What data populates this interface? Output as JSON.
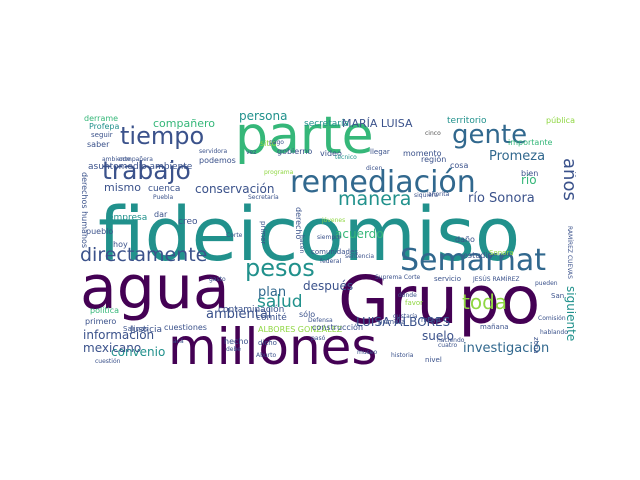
{
  "palette": {
    "dark": "#440154",
    "indigo": "#3b528b",
    "blue": "#31688e",
    "teal": "#21918c",
    "green": "#35b779",
    "lime": "#90d743",
    "yellow": "#d8e219",
    "grey": "#555555"
  },
  "words": [
    {
      "text": "fideicomiso",
      "size": 74,
      "color": "teal"
    },
    {
      "text": "Grupo",
      "size": 66,
      "color": "dark"
    },
    {
      "text": "agua",
      "size": 60,
      "color": "dark"
    },
    {
      "text": "parte",
      "size": 52,
      "color": "green"
    },
    {
      "text": "millones",
      "size": 50,
      "color": "dark"
    },
    {
      "text": "remediación",
      "size": 30,
      "color": "blue"
    },
    {
      "text": "Semarnat",
      "size": 30,
      "color": "blue"
    },
    {
      "text": "gente",
      "size": 26,
      "color": "blue"
    },
    {
      "text": "trabajo",
      "size": 25,
      "color": "indigo"
    },
    {
      "text": "tiempo",
      "size": 24,
      "color": "indigo"
    },
    {
      "text": "pesos",
      "size": 24,
      "color": "teal"
    },
    {
      "text": "directamente",
      "size": 19,
      "color": "indigo"
    },
    {
      "text": "manera",
      "size": 19,
      "color": "teal"
    },
    {
      "text": "toda",
      "size": 20,
      "color": "lime"
    },
    {
      "text": "años",
      "size": 18,
      "color": "indigo"
    },
    {
      "text": "salud",
      "size": 17,
      "color": "teal"
    },
    {
      "text": "investigación",
      "size": 13,
      "color": "blue"
    },
    {
      "text": "Promeza",
      "size": 13,
      "color": "blue"
    },
    {
      "text": "río Sonora",
      "size": 13,
      "color": "indigo"
    },
    {
      "text": "río",
      "size": 12,
      "color": "green"
    },
    {
      "text": "siguiente",
      "size": 12,
      "color": "teal"
    },
    {
      "text": "LUISA ALBORES",
      "size": 12,
      "color": "indigo"
    },
    {
      "text": "ambiental",
      "size": 13,
      "color": "indigo"
    },
    {
      "text": "información",
      "size": 12,
      "color": "indigo"
    },
    {
      "text": "convenio",
      "size": 12,
      "color": "teal"
    },
    {
      "text": "mexicano",
      "size": 12,
      "color": "indigo"
    },
    {
      "text": "suelo",
      "size": 12,
      "color": "indigo"
    },
    {
      "text": "plan",
      "size": 13,
      "color": "blue"
    },
    {
      "text": "después",
      "size": 12,
      "color": "indigo"
    },
    {
      "text": "acuerdo",
      "size": 12,
      "color": "green"
    },
    {
      "text": "conservación",
      "size": 12,
      "color": "indigo"
    },
    {
      "text": "mismo",
      "size": 11,
      "color": "indigo"
    },
    {
      "text": "compañero",
      "size": 11,
      "color": "green"
    },
    {
      "text": "persona",
      "size": 12,
      "color": "teal"
    },
    {
      "text": "MARÍA LUISA",
      "size": 11,
      "color": "indigo"
    },
    {
      "text": "secretaría",
      "size": 9,
      "color": "teal"
    },
    {
      "text": "territorio",
      "size": 9,
      "color": "teal"
    },
    {
      "text": "pública",
      "size": 8,
      "color": "lime"
    },
    {
      "text": "derrame",
      "size": 8,
      "color": "green"
    },
    {
      "text": "Profepa",
      "size": 8,
      "color": "teal"
    },
    {
      "text": "seguir",
      "size": 7,
      "color": "indigo"
    },
    {
      "text": "saber",
      "size": 8,
      "color": "indigo"
    },
    {
      "text": "ambiente",
      "size": 6,
      "color": "indigo"
    },
    {
      "text": "compañera",
      "size": 6,
      "color": "indigo"
    },
    {
      "text": "derechos humanos",
      "size": 8,
      "color": "indigo"
    },
    {
      "text": "asuntomedio ambiente",
      "size": 9,
      "color": "indigo"
    },
    {
      "text": "empresa",
      "size": 9,
      "color": "teal"
    },
    {
      "text": "Puebla",
      "size": 6,
      "color": "indigo"
    },
    {
      "text": "cuenca",
      "size": 9,
      "color": "indigo"
    },
    {
      "text": "creo",
      "size": 9,
      "color": "indigo"
    },
    {
      "text": "pueblo",
      "size": 8,
      "color": "indigo"
    },
    {
      "text": "hoy",
      "size": 8,
      "color": "indigo"
    },
    {
      "text": "dar",
      "size": 8,
      "color": "indigo"
    },
    {
      "text": "Justicia",
      "size": 9,
      "color": "indigo"
    },
    {
      "text": "acá",
      "size": 6,
      "color": "indigo"
    },
    {
      "text": "contaminación",
      "size": 9,
      "color": "indigo"
    },
    {
      "text": "comité",
      "size": 9,
      "color": "indigo"
    },
    {
      "text": "gobierno",
      "size": 8,
      "color": "indigo"
    },
    {
      "text": "sitio",
      "size": 8,
      "color": "lime"
    },
    {
      "text": "video",
      "size": 8,
      "color": "indigo"
    },
    {
      "text": "momento",
      "size": 8,
      "color": "indigo"
    },
    {
      "text": "región",
      "size": 8,
      "color": "indigo"
    },
    {
      "text": "cosa",
      "size": 8,
      "color": "indigo"
    },
    {
      "text": "bien",
      "size": 8,
      "color": "indigo"
    },
    {
      "text": "importante",
      "size": 8,
      "color": "green"
    },
    {
      "text": "remedar",
      "size": 7,
      "color": "indigo"
    },
    {
      "text": "zona",
      "size": 7,
      "color": "indigo"
    },
    {
      "text": "San",
      "size": 7,
      "color": "indigo"
    },
    {
      "text": "técnico",
      "size": 6,
      "color": "teal"
    },
    {
      "text": "llegar",
      "size": 7,
      "color": "indigo"
    },
    {
      "text": "cinco",
      "size": 6,
      "color": "grey"
    },
    {
      "text": "dicen",
      "size": 6,
      "color": "indigo"
    },
    {
      "text": "siquiera",
      "size": 6,
      "color": "indigo"
    },
    {
      "text": "ahorita",
      "size": 6,
      "color": "indigo"
    },
    {
      "text": "sólo",
      "size": 8,
      "color": "indigo"
    },
    {
      "text": "podemos",
      "size": 8,
      "color": "indigo"
    },
    {
      "text": "servidora",
      "size": 6,
      "color": "indigo"
    },
    {
      "text": "pago",
      "size": 6,
      "color": "indigo"
    },
    {
      "text": "vez",
      "size": 6,
      "color": "indigo"
    },
    {
      "text": "Secretaría",
      "size": 6,
      "color": "indigo"
    },
    {
      "text": "programa",
      "size": 6,
      "color": "lime"
    },
    {
      "text": "primer",
      "size": 7,
      "color": "indigo"
    },
    {
      "text": "Corte",
      "size": 6,
      "color": "indigo"
    },
    {
      "text": "derecho",
      "size": 8,
      "color": "indigo"
    },
    {
      "text": "comunidades",
      "size": 7,
      "color": "indigo"
    },
    {
      "text": "siempre",
      "size": 6,
      "color": "indigo"
    },
    {
      "text": "jóvenes",
      "size": 6,
      "color": "lime"
    },
    {
      "text": "sentencia",
      "size": 6,
      "color": "indigo"
    },
    {
      "text": "daño",
      "size": 8,
      "color": "indigo"
    },
    {
      "text": "estudio",
      "size": 8,
      "color": "indigo"
    },
    {
      "text": "Sonora",
      "size": 7,
      "color": "lime"
    },
    {
      "text": "RAMÍREZ CUEVAS",
      "size": 6,
      "color": "indigo"
    },
    {
      "text": "gasto",
      "size": 6,
      "color": "indigo"
    },
    {
      "text": "Suprema Corte",
      "size": 6,
      "color": "indigo"
    },
    {
      "text": "servicio",
      "size": 7,
      "color": "indigo"
    },
    {
      "text": "JESÚS RAMÍREZ",
      "size": 6,
      "color": "indigo"
    },
    {
      "text": "pueden",
      "size": 6,
      "color": "indigo"
    },
    {
      "text": "política",
      "size": 8,
      "color": "green"
    },
    {
      "text": "primero",
      "size": 8,
      "color": "indigo"
    },
    {
      "text": "Salinas",
      "size": 7,
      "color": "indigo"
    },
    {
      "text": "cuestiones",
      "size": 8,
      "color": "indigo"
    },
    {
      "text": "ALBORES GONZÁLEZ",
      "size": 8,
      "color": "lime"
    },
    {
      "text": "construcción",
      "size": 8,
      "color": "indigo"
    },
    {
      "text": "hecho",
      "size": 8,
      "color": "indigo"
    },
    {
      "text": "dicho",
      "size": 7,
      "color": "indigo"
    },
    {
      "text": "Defensa",
      "size": 6,
      "color": "indigo"
    },
    {
      "text": "primera",
      "size": 7,
      "color": "indigo"
    },
    {
      "text": "favor",
      "size": 7,
      "color": "lime"
    },
    {
      "text": "dónde",
      "size": 6,
      "color": "indigo"
    },
    {
      "text": "maya",
      "size": 7,
      "color": "indigo"
    },
    {
      "text": "gustaría",
      "size": 6,
      "color": "indigo"
    },
    {
      "text": "mañana",
      "size": 7,
      "color": "indigo"
    },
    {
      "text": "Comisión",
      "size": 6,
      "color": "indigo"
    },
    {
      "text": "hablando",
      "size": 6,
      "color": "indigo"
    },
    {
      "text": "cuatro",
      "size": 6,
      "color": "indigo"
    },
    {
      "text": "haciendo",
      "size": 6,
      "color": "indigo"
    },
    {
      "text": "nivel",
      "size": 7,
      "color": "indigo"
    },
    {
      "text": "historia",
      "size": 6,
      "color": "indigo"
    },
    {
      "text": "museo",
      "size": 6,
      "color": "indigo"
    },
    {
      "text": "federal",
      "size": 6,
      "color": "indigo"
    },
    {
      "text": "hacen",
      "size": 6,
      "color": "indigo"
    },
    {
      "text": "pasó",
      "size": 6,
      "color": "indigo"
    },
    {
      "text": "Aburto",
      "size": 6,
      "color": "indigo"
    },
    {
      "text": "debe",
      "size": 6,
      "color": "indigo"
    },
    {
      "text": "cuestión",
      "size": 6,
      "color": "indigo"
    }
  ]
}
